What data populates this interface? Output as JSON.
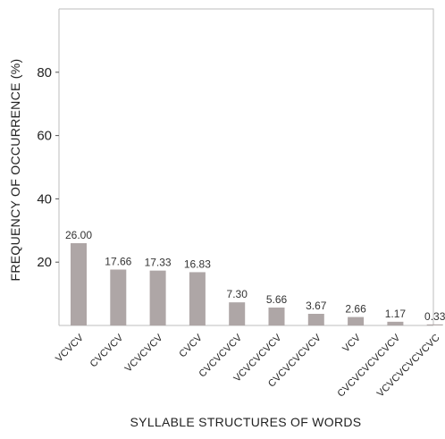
{
  "chart_data": {
    "type": "bar",
    "title": "",
    "xlabel": "SYLLABLE STRUCTURES OF WORDS",
    "ylabel": "FREQUENCY OF OCCURRENCE (%)",
    "ylim": [
      0,
      100
    ],
    "yticks": [
      20,
      40,
      60,
      80
    ],
    "grid": false,
    "legend": "none",
    "bar_color": "#aea6a6",
    "categories": [
      "VCVCV",
      "CVCVCV",
      "VCVCVCV",
      "CVCV",
      "CVCVCVCV",
      "VCVCVCVCV",
      "CVCVCVCVCV",
      "VCV",
      "CVCVCVCVCVCV",
      "VCVCVCVCVCVC"
    ],
    "values": [
      26.0,
      17.66,
      17.33,
      16.83,
      7.3,
      5.66,
      3.67,
      2.66,
      1.17,
      0.33
    ],
    "value_labels": [
      "26.00",
      "17.66",
      "17.33",
      "16.83",
      "7.30",
      "5.66",
      "3.67",
      "2.66",
      "1.17",
      "0.33"
    ]
  }
}
